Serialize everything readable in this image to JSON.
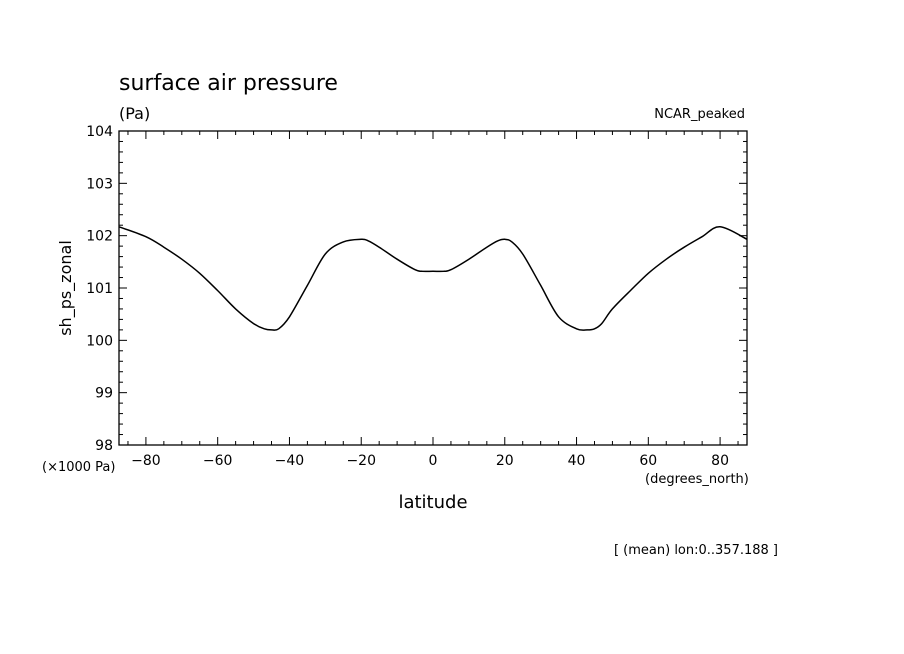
{
  "chart_data": {
    "type": "line",
    "title": "surface air pressure",
    "units": "(Pa)",
    "annotation_right": "NCAR_peaked",
    "xlabel": "latitude",
    "x_units": "(degrees_north)",
    "ylabel": "sh_ps_zonal",
    "y_multiplier": "(×1000 Pa)",
    "footnote": "[ (mean) lon:0..357.188 ]",
    "xlim": [
      -87.5,
      87.5
    ],
    "ylim": [
      98,
      104
    ],
    "x_ticks": [
      -80,
      -60,
      -40,
      -20,
      0,
      20,
      40,
      60,
      80
    ],
    "y_ticks": [
      98,
      99,
      100,
      101,
      102,
      103,
      104
    ],
    "series": [
      {
        "x": [
          -87.5,
          -80,
          -75,
          -70,
          -65,
          -60,
          -55,
          -50,
          -47,
          -45,
          -43,
          -40,
          -35,
          -30,
          -25,
          -20,
          -18,
          -15,
          -10,
          -5,
          -3,
          0,
          3,
          5,
          10,
          15,
          18,
          20,
          22,
          25,
          30,
          35,
          40,
          43,
          45,
          47,
          50,
          55,
          60,
          65,
          70,
          75,
          80,
          87.5
        ],
        "y": [
          102.17,
          101.98,
          101.78,
          101.55,
          101.28,
          100.95,
          100.6,
          100.32,
          100.22,
          100.2,
          100.22,
          100.45,
          101.05,
          101.65,
          101.88,
          101.93,
          101.9,
          101.78,
          101.55,
          101.35,
          101.32,
          101.32,
          101.32,
          101.35,
          101.55,
          101.78,
          101.9,
          101.93,
          101.88,
          101.65,
          101.05,
          100.45,
          100.22,
          100.2,
          100.22,
          100.32,
          100.6,
          100.95,
          101.28,
          101.55,
          101.78,
          101.98,
          102.17,
          101.93
        ]
      }
    ]
  }
}
